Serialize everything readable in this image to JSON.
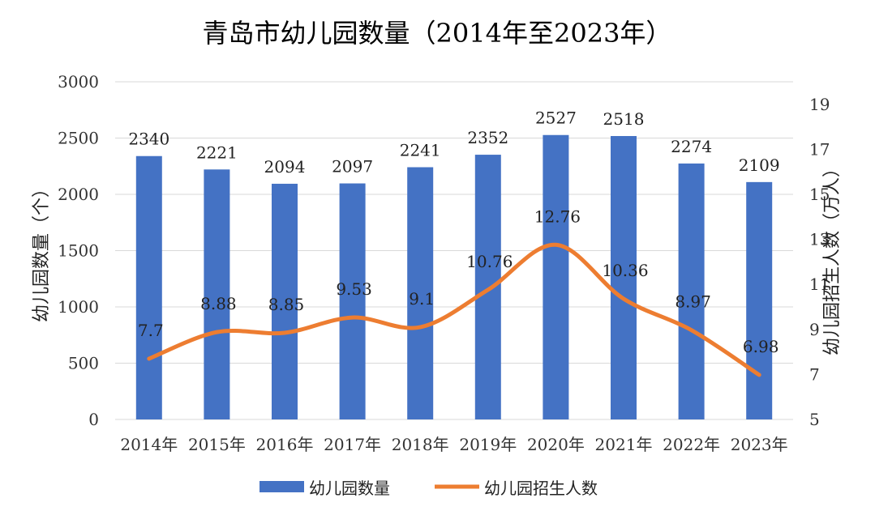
{
  "chart_data": {
    "type": "bar+line",
    "title": "青岛市幼儿园数量（2014年至2023年）",
    "categories": [
      "2014年",
      "2015年",
      "2016年",
      "2017年",
      "2018年",
      "2019年",
      "2020年",
      "2021年",
      "2022年",
      "2023年"
    ],
    "series": [
      {
        "name": "幼儿园数量",
        "type": "bar",
        "axis": "left",
        "color": "#4472C4",
        "values": [
          2340,
          2221,
          2094,
          2097,
          2241,
          2352,
          2527,
          2518,
          2274,
          2109
        ],
        "labels": [
          "2340",
          "2221",
          "2094",
          "2097",
          "2241",
          "2352",
          "2527",
          "2518",
          "2274",
          "2109"
        ]
      },
      {
        "name": "幼儿园招生人数",
        "type": "line",
        "axis": "right",
        "color": "#ED7D31",
        "smooth": true,
        "values": [
          7.7,
          8.88,
          8.85,
          9.53,
          9.1,
          10.76,
          12.76,
          10.36,
          8.97,
          6.98
        ],
        "labels": [
          "7.7",
          "8.88",
          "8.85",
          "9.53",
          "9.1",
          "10.76",
          "12.76",
          "10.36",
          "8.97",
          "6.98"
        ]
      }
    ],
    "ylabel": "幼儿园数量（个）",
    "y2label": "幼儿园招生人数（万人）",
    "ylim": [
      0,
      3000
    ],
    "yticks": [
      "0",
      "500",
      "1000",
      "1500",
      "2000",
      "2500",
      "3000"
    ],
    "y2lim": [
      5,
      20
    ],
    "y2ticks": [
      "5",
      "7",
      "9",
      "11",
      "13",
      "15",
      "17",
      "19"
    ],
    "grid": true,
    "legend": "bottom"
  }
}
